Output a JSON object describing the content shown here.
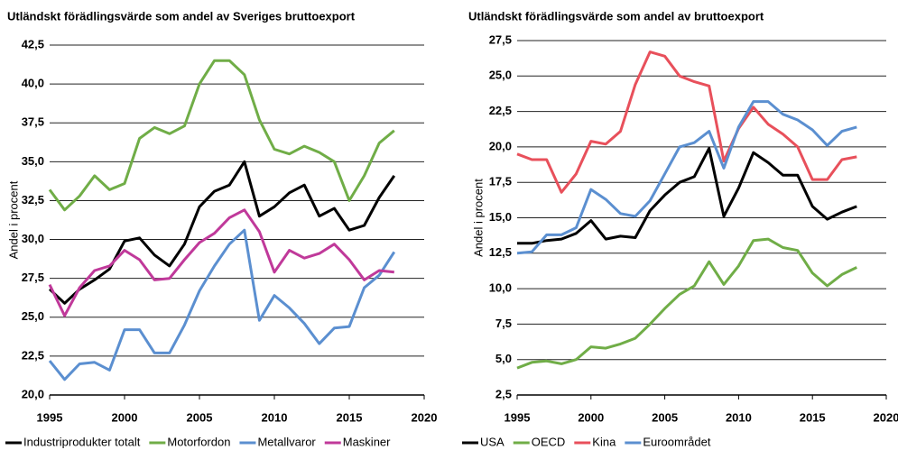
{
  "chart_data": [
    {
      "type": "line",
      "title": "Utländskt förädlingsvärde som andel av Sveriges bruttoexport",
      "y_label": "Andel i procent",
      "x": [
        1995,
        1996,
        1997,
        1998,
        1999,
        2000,
        2001,
        2002,
        2003,
        2004,
        2005,
        2006,
        2007,
        2008,
        2009,
        2010,
        2011,
        2012,
        2013,
        2014,
        2015,
        2016,
        2017,
        2018
      ],
      "xlim": [
        1995,
        2020
      ],
      "xticks": [
        1995,
        2000,
        2005,
        2010,
        2015,
        2020
      ],
      "ylim": [
        20,
        42.5
      ],
      "yticks": [
        {
          "value": 20,
          "label": "20,0"
        },
        {
          "value": 22.5,
          "label": "22,5"
        },
        {
          "value": 25,
          "label": "25,0"
        },
        {
          "value": 27.5,
          "label": "27,5"
        },
        {
          "value": 30,
          "label": "30,0"
        },
        {
          "value": 32.5,
          "label": "32,5"
        },
        {
          "value": 35,
          "label": "35,0"
        },
        {
          "value": 37.5,
          "label": "37,5"
        },
        {
          "value": 40,
          "label": "40,0"
        },
        {
          "value": 42.5,
          "label": "42,5"
        }
      ],
      "grid": true,
      "legend": "bottom",
      "series": [
        {
          "name": "Industriprodukter totalt",
          "color": "#000000",
          "values": [
            26.8,
            25.9,
            26.8,
            27.4,
            28.1,
            29.9,
            30.1,
            29.0,
            28.3,
            29.7,
            32.1,
            33.1,
            33.5,
            35.0,
            31.5,
            32.1,
            33.0,
            33.5,
            31.5,
            32.0,
            30.6,
            30.9,
            32.7,
            34.1
          ]
        },
        {
          "name": "Motorfordon",
          "color": "#70ad47",
          "values": [
            33.2,
            31.9,
            32.8,
            34.1,
            33.2,
            33.6,
            36.5,
            37.2,
            36.8,
            37.3,
            40.0,
            41.5,
            41.5,
            40.6,
            37.7,
            35.8,
            35.5,
            36.0,
            35.6,
            35.0,
            32.5,
            34.1,
            36.2,
            37.0
          ]
        },
        {
          "name": "Metallvaror",
          "color": "#5b8fd0",
          "values": [
            22.2,
            21.0,
            22.0,
            22.1,
            21.6,
            24.2,
            24.2,
            22.7,
            22.7,
            24.5,
            26.7,
            28.3,
            29.7,
            30.6,
            24.8,
            26.4,
            25.6,
            24.6,
            23.3,
            24.3,
            24.4,
            26.9,
            27.7,
            29.2
          ]
        },
        {
          "name": "Maskiner",
          "color": "#c0399a",
          "values": [
            27.1,
            25.1,
            26.9,
            28.0,
            28.3,
            29.3,
            28.7,
            27.4,
            27.5,
            28.7,
            29.8,
            30.4,
            31.4,
            31.9,
            30.5,
            27.9,
            29.3,
            28.8,
            29.1,
            29.7,
            28.7,
            27.4,
            28.0,
            27.9
          ]
        }
      ]
    },
    {
      "type": "line",
      "title": "Utländskt förädlingsvärde som andel av bruttoexport",
      "y_label": "Andel i procent",
      "x": [
        1995,
        1996,
        1997,
        1998,
        1999,
        2000,
        2001,
        2002,
        2003,
        2004,
        2005,
        2006,
        2007,
        2008,
        2009,
        2010,
        2011,
        2012,
        2013,
        2014,
        2015,
        2016,
        2017,
        2018
      ],
      "xlim": [
        1995,
        2020
      ],
      "xticks": [
        1995,
        2000,
        2005,
        2010,
        2015,
        2020
      ],
      "ylim": [
        2.5,
        27.5
      ],
      "yticks": [
        {
          "value": 2.5,
          "label": "2,5"
        },
        {
          "value": 5,
          "label": "5,0"
        },
        {
          "value": 7.5,
          "label": "7,5"
        },
        {
          "value": 10,
          "label": "10,0"
        },
        {
          "value": 12.5,
          "label": "12,5"
        },
        {
          "value": 15,
          "label": "15,0"
        },
        {
          "value": 17.5,
          "label": "17,5"
        },
        {
          "value": 20,
          "label": "20,0"
        },
        {
          "value": 22.5,
          "label": "22,5"
        },
        {
          "value": 25,
          "label": "25,0"
        },
        {
          "value": 27.5,
          "label": "27,5"
        }
      ],
      "grid": true,
      "legend": "bottom",
      "series": [
        {
          "name": "USA",
          "color": "#000000",
          "values": [
            13.2,
            13.2,
            13.4,
            13.5,
            13.9,
            14.8,
            13.5,
            13.7,
            13.6,
            15.5,
            16.6,
            17.5,
            17.9,
            19.9,
            15.1,
            17.1,
            19.6,
            18.9,
            18.0,
            18.0,
            15.8,
            14.9,
            15.4,
            15.8
          ]
        },
        {
          "name": "OECD",
          "color": "#70ad47",
          "values": [
            4.4,
            4.8,
            4.9,
            4.7,
            5.0,
            5.9,
            5.8,
            6.1,
            6.5,
            7.5,
            8.6,
            9.6,
            10.2,
            11.9,
            10.3,
            11.6,
            13.4,
            13.5,
            12.9,
            12.7,
            11.1,
            10.2,
            11.0,
            11.5
          ]
        },
        {
          "name": "Kina",
          "color": "#e8505b",
          "values": [
            19.5,
            19.1,
            19.1,
            16.8,
            18.1,
            20.4,
            20.2,
            21.1,
            24.4,
            26.7,
            26.4,
            25.0,
            24.6,
            24.3,
            19.0,
            21.3,
            22.8,
            21.6,
            20.9,
            20.0,
            17.7,
            17.7,
            19.1,
            19.3
          ]
        },
        {
          "name": "Euroområdet",
          "color": "#5b8fd0",
          "values": [
            12.5,
            12.6,
            13.8,
            13.8,
            14.3,
            17.0,
            16.3,
            15.3,
            15.1,
            16.2,
            18.1,
            20.0,
            20.3,
            21.1,
            18.5,
            21.4,
            23.2,
            23.2,
            22.3,
            21.9,
            21.2,
            20.1,
            21.1,
            21.4
          ]
        }
      ]
    }
  ]
}
